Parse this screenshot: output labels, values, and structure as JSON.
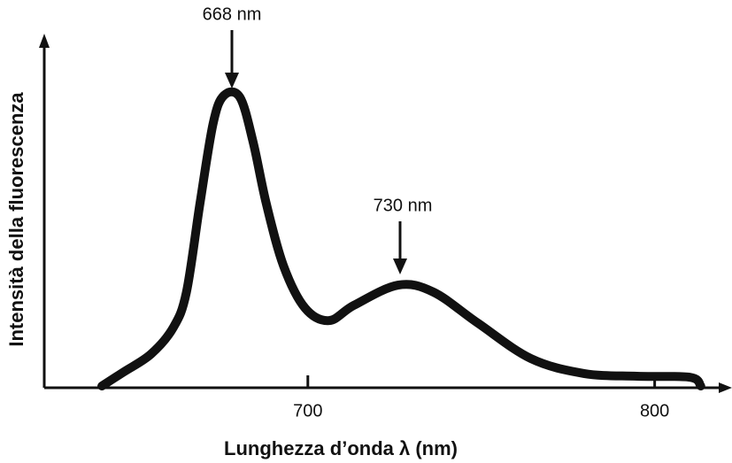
{
  "chart_data": {
    "type": "line",
    "x_label": "Lunghezza d’onda λ (nm)",
    "y_label": "Intensità della fluorescenza",
    "annotations": [
      "668 nm",
      "730 nm"
    ],
    "x": [
      640.6,
      647,
      654.8,
      661.2,
      665,
      668.9,
      672.7,
      675.8,
      680.4,
      684.2,
      688,
      693,
      699.2,
      706.1,
      713.3,
      726,
      736.2,
      749,
      764.3,
      779.6,
      794.9,
      810.2,
      813.3
    ],
    "series": [
      {
        "color": "#111111",
        "values": [
          0.5,
          4.6,
          9.7,
          17.3,
          27.5,
          53,
          76,
          84,
          83.5,
          70.7,
          53,
          35,
          22.9,
          19.3,
          23.7,
          29.5,
          27.5,
          18.6,
          8.4,
          4.1,
          3.3,
          3,
          0.5
        ]
      }
    ],
    "xlim": [
      624,
      820
    ],
    "xticks": [
      700,
      800
    ],
    "ylim": [
      0,
      100
    ],
    "grid": false
  }
}
